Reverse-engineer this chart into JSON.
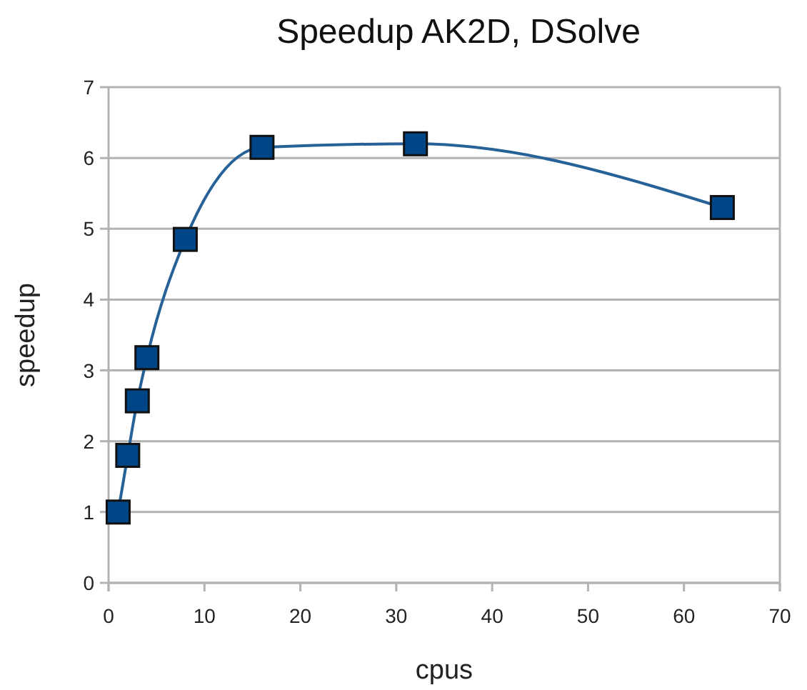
{
  "chart_data": {
    "type": "line",
    "title": "Speedup AK2D, DSolve",
    "xlabel": "cpus",
    "ylabel": "speedup",
    "x": [
      1,
      2,
      3,
      4,
      8,
      16,
      32,
      64
    ],
    "series": [
      {
        "color": "#004586",
        "values": [
          1.0,
          1.8,
          2.57,
          3.18,
          4.85,
          6.15,
          6.2,
          5.3
        ]
      }
    ],
    "xlim": [
      0,
      70
    ],
    "xticks": [
      0,
      10,
      20,
      30,
      40,
      50,
      60,
      70
    ],
    "ylim": [
      0,
      7
    ],
    "yticks": [
      0,
      1,
      2,
      3,
      4,
      5,
      6,
      7
    ],
    "grid": "y",
    "marker": "square",
    "line_style": "solid"
  }
}
